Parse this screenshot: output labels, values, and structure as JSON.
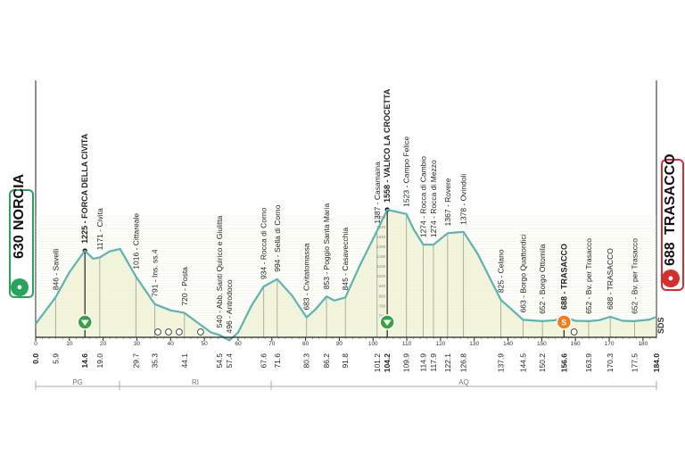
{
  "start": {
    "elevation": "630",
    "name": "NORCIA",
    "color": "#27a35a"
  },
  "finish": {
    "elevation": "688",
    "name": "TRASACCO",
    "color": "#d32f2f"
  },
  "sds_label": "SDS",
  "regions": [
    "PG",
    "RI",
    "AQ"
  ],
  "chart_data": {
    "type": "area",
    "xlim": [
      0,
      184
    ],
    "ylim": [
      550,
      1650
    ],
    "x_axis_ticks": [
      0,
      10,
      20,
      30,
      40,
      50,
      60,
      70,
      80,
      90,
      100,
      110,
      120,
      130,
      140,
      150,
      160,
      170,
      180
    ],
    "y_ticks": [
      700,
      780,
      860,
      940,
      1020,
      1100,
      1180,
      1260,
      1340,
      1420,
      1500
    ],
    "km_labels": [
      "0.0",
      "5.9",
      "14.6",
      "19.0",
      "29.7",
      "35.3",
      "44.1",
      "54.5",
      "57.4",
      "67.6",
      "71.6",
      "80.3",
      "86.2",
      "91.8",
      "101.2",
      "104.2",
      "109.9",
      "114.9",
      "117.9",
      "122.1",
      "126.8",
      "137.9",
      "144.5",
      "150.2",
      "156.6",
      "163.9",
      "170.3",
      "177.5",
      "184.0"
    ],
    "profile": [
      {
        "km": 0,
        "elev": 630
      },
      {
        "km": 5.9,
        "elev": 846
      },
      {
        "km": 10,
        "elev": 1050
      },
      {
        "km": 14.6,
        "elev": 1225
      },
      {
        "km": 17,
        "elev": 1160
      },
      {
        "km": 19,
        "elev": 1171
      },
      {
        "km": 22,
        "elev": 1220
      },
      {
        "km": 25,
        "elev": 1240
      },
      {
        "km": 29.7,
        "elev": 1016
      },
      {
        "km": 35.3,
        "elev": 791
      },
      {
        "km": 40,
        "elev": 740
      },
      {
        "km": 44.1,
        "elev": 720
      },
      {
        "km": 48,
        "elev": 640
      },
      {
        "km": 52,
        "elev": 560
      },
      {
        "km": 54.5,
        "elev": 540
      },
      {
        "km": 57.4,
        "elev": 496
      },
      {
        "km": 60,
        "elev": 560
      },
      {
        "km": 64,
        "elev": 780
      },
      {
        "km": 67.6,
        "elev": 934
      },
      {
        "km": 71.6,
        "elev": 994
      },
      {
        "km": 76,
        "elev": 860
      },
      {
        "km": 80.3,
        "elev": 683
      },
      {
        "km": 83,
        "elev": 750
      },
      {
        "km": 86.2,
        "elev": 853
      },
      {
        "km": 88.5,
        "elev": 820
      },
      {
        "km": 91.8,
        "elev": 845
      },
      {
        "km": 96,
        "elev": 1100
      },
      {
        "km": 101.2,
        "elev": 1387
      },
      {
        "km": 104.2,
        "elev": 1558
      },
      {
        "km": 109.9,
        "elev": 1523
      },
      {
        "km": 112,
        "elev": 1400
      },
      {
        "km": 114.9,
        "elev": 1274
      },
      {
        "km": 117.9,
        "elev": 1274
      },
      {
        "km": 122.1,
        "elev": 1367
      },
      {
        "km": 126.8,
        "elev": 1378
      },
      {
        "km": 131,
        "elev": 1200
      },
      {
        "km": 137.9,
        "elev": 825
      },
      {
        "km": 144.5,
        "elev": 663
      },
      {
        "km": 150.2,
        "elev": 652
      },
      {
        "km": 154,
        "elev": 660
      },
      {
        "km": 156.6,
        "elev": 688
      },
      {
        "km": 160,
        "elev": 655
      },
      {
        "km": 163.9,
        "elev": 652
      },
      {
        "km": 167,
        "elev": 660
      },
      {
        "km": 170.3,
        "elev": 688
      },
      {
        "km": 174,
        "elev": 655
      },
      {
        "km": 177.5,
        "elev": 652
      },
      {
        "km": 182,
        "elev": 665
      },
      {
        "km": 184,
        "elev": 688
      }
    ],
    "waypoints": [
      {
        "km": 5.9,
        "label": "846 - Savelli"
      },
      {
        "km": 14.6,
        "label": "1225 - FORCA DELLA CIVITA",
        "bold": true,
        "marker": true
      },
      {
        "km": 19,
        "label": "1171 - Civita"
      },
      {
        "km": 29.7,
        "label": "1016 - Cittareale"
      },
      {
        "km": 35.3,
        "label": "791 - Ins. ss.4"
      },
      {
        "km": 44.1,
        "label": "720 - Posta"
      },
      {
        "km": 54.5,
        "label": "540 - Abb. Santi Quirico e Giulitta"
      },
      {
        "km": 57.4,
        "label": "496 - Antrodoco"
      },
      {
        "km": 67.6,
        "label": "934 - Rocca di Corno"
      },
      {
        "km": 71.6,
        "label": "994 - Sella di Corno"
      },
      {
        "km": 80.3,
        "label": "683 - Civitatomassa"
      },
      {
        "km": 86.2,
        "label": "853 - Poggio Santa Maria"
      },
      {
        "km": 91.8,
        "label": "845 - Casavecchia"
      },
      {
        "km": 101.2,
        "label": "1387 - Casamaina"
      },
      {
        "km": 104.2,
        "label": "1558 - VALICO LA CROCETTA",
        "bold": true,
        "marker": true
      },
      {
        "km": 109.9,
        "label": "1523 - Campo Felice"
      },
      {
        "km": 114.9,
        "label": "1274 - Rocca di Cambio"
      },
      {
        "km": 117.9,
        "label": "1274 - Rocca di Mezzo"
      },
      {
        "km": 122.1,
        "label": "1367 - Rovere"
      },
      {
        "km": 126.8,
        "label": "1378 - Ovindoli"
      },
      {
        "km": 137.9,
        "label": "825 - Celano"
      },
      {
        "km": 144.5,
        "label": "663 - Borgo Quattordici"
      },
      {
        "km": 150.2,
        "label": "652 - Borgo Ottomila"
      },
      {
        "km": 156.6,
        "label": "688 - TRASACCO",
        "bold": true,
        "marker": true
      },
      {
        "km": 163.9,
        "label": "652 - Bv. per Trasacco"
      },
      {
        "km": 170.3,
        "label": "688 - TRASACCO"
      },
      {
        "km": 177.5,
        "label": "652 - Bv. per Trasacco"
      }
    ],
    "kom_km": [
      14.6,
      104.2
    ],
    "sprint_km": [
      156.6
    ],
    "sprint_symbol": "S",
    "colors": {
      "profile_line": "#5bb3b3",
      "fill": "#f2f5dc",
      "axis": "#333333",
      "grid": "#9c9c9c"
    }
  }
}
